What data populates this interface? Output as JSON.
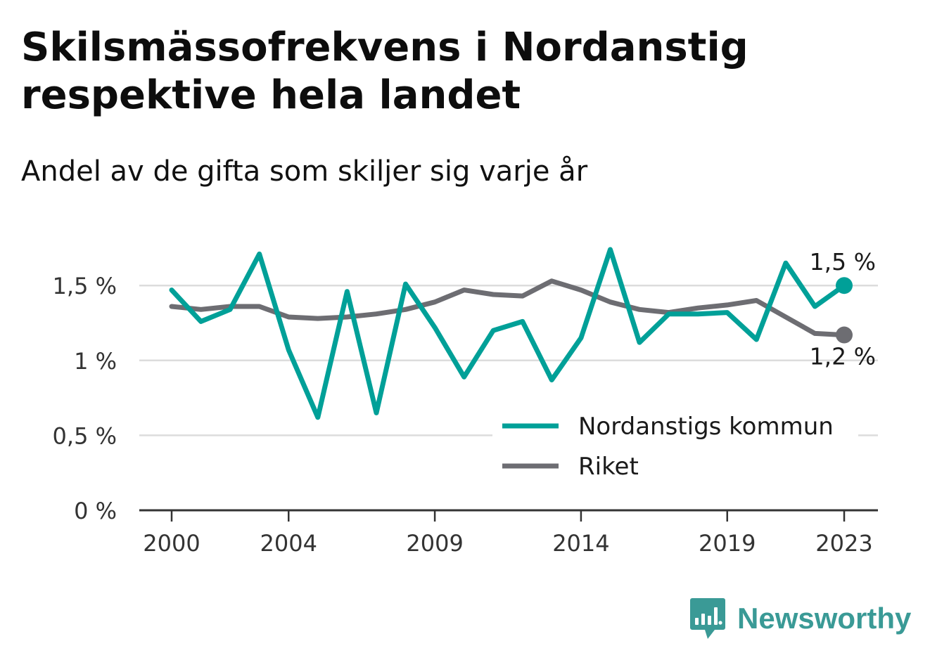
{
  "title": "Skilsmässofrekvens i Nordanstig respektive hela landet",
  "subtitle": "Andel av de gifta som skiljer sig varje år",
  "brand": {
    "name": "Newsworthy",
    "icon": "bar-chart-speech-bubble-icon",
    "color": "#3a9a96"
  },
  "chart_data": {
    "type": "line",
    "title": "Skilsmässofrekvens i Nordanstig respektive hela landet",
    "subtitle": "Andel av de gifta som skiljer sig varje år",
    "xlabel": "",
    "ylabel": "",
    "x": [
      2000,
      2001,
      2002,
      2003,
      2004,
      2005,
      2006,
      2007,
      2008,
      2009,
      2010,
      2011,
      2012,
      2013,
      2014,
      2015,
      2016,
      2017,
      2018,
      2019,
      2020,
      2021,
      2022,
      2023
    ],
    "x_ticks": [
      2000,
      2004,
      2009,
      2014,
      2019,
      2023
    ],
    "x_tick_labels": [
      "2000",
      "2004",
      "2009",
      "2014",
      "2019",
      "2023"
    ],
    "ylim": [
      0,
      1.8
    ],
    "y_ticks": [
      0,
      0.5,
      1,
      1.5
    ],
    "y_tick_labels": [
      "0 %",
      "0,5 %",
      "1 %",
      "1,5 %"
    ],
    "grid": true,
    "legend_position": "bottom-right",
    "series": [
      {
        "name": "Nordanstigs kommun",
        "color": "#00a098",
        "values": [
          1.47,
          1.26,
          1.34,
          1.71,
          1.07,
          0.62,
          1.46,
          0.65,
          1.51,
          1.22,
          0.89,
          1.2,
          1.26,
          0.87,
          1.15,
          1.74,
          1.12,
          1.31,
          1.31,
          1.32,
          1.14,
          1.65,
          1.36,
          1.5
        ],
        "end_label": "1,5 %"
      },
      {
        "name": "Riket",
        "color": "#6d6d72",
        "values": [
          1.36,
          1.34,
          1.36,
          1.36,
          1.29,
          1.28,
          1.29,
          1.31,
          1.34,
          1.39,
          1.47,
          1.44,
          1.43,
          1.53,
          1.47,
          1.39,
          1.34,
          1.32,
          1.35,
          1.37,
          1.4,
          1.29,
          1.18,
          1.17
        ],
        "end_label": "1,2 %"
      }
    ]
  }
}
